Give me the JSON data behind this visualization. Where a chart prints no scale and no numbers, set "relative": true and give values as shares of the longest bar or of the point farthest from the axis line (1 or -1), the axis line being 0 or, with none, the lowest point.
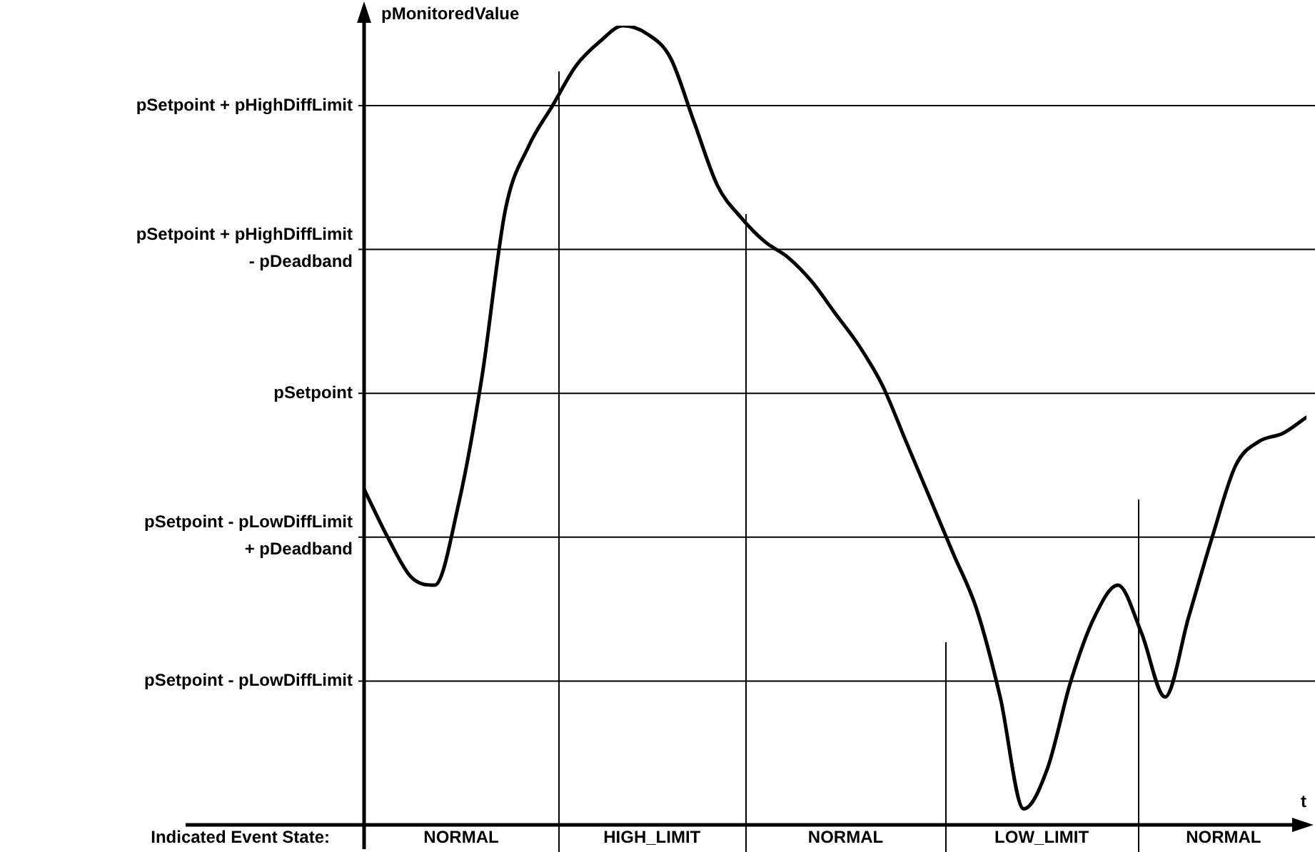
{
  "chart_data": {
    "type": "line",
    "relative": true,
    "xlabel": "t",
    "ylabel": "pMonitoredValue",
    "categories": [
      null,
      null,
      null,
      null,
      null,
      null,
      null,
      null,
      null,
      null,
      null,
      null,
      null,
      null,
      null,
      null,
      null,
      null,
      null,
      null,
      null,
      null,
      null,
      null,
      null,
      null,
      null,
      null,
      null,
      null,
      null,
      null,
      null,
      null,
      null,
      null,
      null,
      null,
      null,
      null,
      null
    ],
    "series": [
      {
        "color": "#000000",
        "values": [
          0.42,
          0.36,
          0.31,
          0.3,
          0.4,
          0.56,
          0.77,
          0.85,
          0.9,
          0.95,
          0.98,
          1.0,
          0.99,
          0.96,
          0.88,
          0.8,
          0.76,
          0.73,
          0.71,
          0.68,
          0.64,
          0.6,
          0.55,
          0.48,
          0.41,
          0.34,
          0.27,
          0.16,
          0.02,
          0.07,
          0.18,
          0.26,
          0.3,
          0.24,
          0.16,
          0.26,
          0.36,
          0.45,
          0.48,
          0.49,
          0.51
        ]
      }
    ],
    "ref_lines": [
      {
        "axis": "y",
        "value": 0.9,
        "label": "pSetpoint + pHighDiffLimit",
        "color": "#000000"
      },
      {
        "axis": "y",
        "value": 0.72,
        "label": "pSetpoint + pHighDiffLimit\n- pDeadband",
        "color": "#000000"
      },
      {
        "axis": "y",
        "value": 0.54,
        "label": "pSetpoint",
        "color": "#000000"
      },
      {
        "axis": "y",
        "value": 0.36,
        "label": "pSetpoint - pLowDiffLimit\n+ pDeadband",
        "color": "#000000"
      },
      {
        "axis": "y",
        "value": 0.18,
        "label": "pSetpoint - pLowDiffLimit",
        "color": "#000000"
      }
    ],
    "annotations": [
      "Indicated Event State:",
      "NORMAL",
      "HIGH_LIMIT",
      "NORMAL",
      "LOW_LIMIT",
      "NORMAL"
    ],
    "legend": false,
    "marker": "none",
    "line_style": "solid"
  }
}
